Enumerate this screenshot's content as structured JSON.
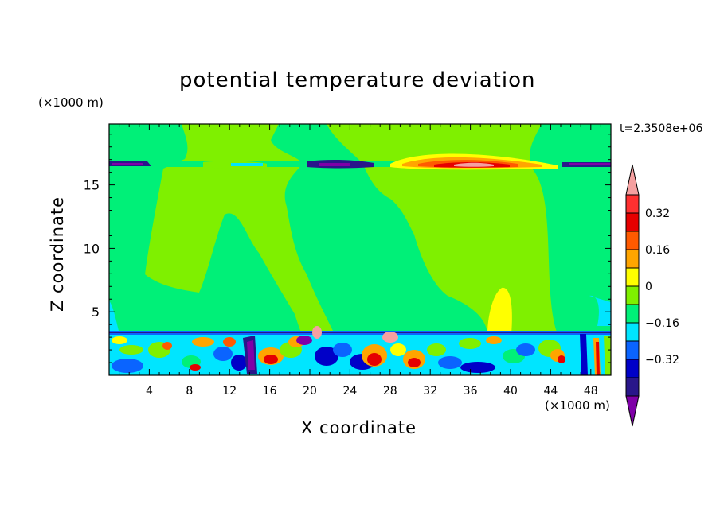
{
  "chart_data": {
    "type": "heatmap",
    "title": "potential temperature deviation",
    "time_label": "t=2.3508e+06",
    "xlabel": "X coordinate",
    "ylabel": "Z coordinate",
    "x_unit": "(×1000 m)",
    "z_unit": "(×1000 m)",
    "xlim": [
      0,
      50
    ],
    "ylim": [
      0,
      19.8
    ],
    "x_ticks": [
      "4",
      "8",
      "12",
      "16",
      "20",
      "24",
      "28",
      "32",
      "36",
      "40",
      "44",
      "48"
    ],
    "y_ticks": [
      "5",
      "10",
      "15"
    ],
    "colorbar": {
      "levels": [
        -0.4,
        -0.32,
        -0.24,
        -0.16,
        -0.08,
        0,
        0.08,
        0.16,
        0.24,
        0.32,
        0.4
      ],
      "tick_labels": [
        "0.32",
        "0.16",
        "0",
        "−0.16",
        "−0.32"
      ],
      "colors": [
        "#7f00a8",
        "#29168a",
        "#0000c8",
        "#0a64ff",
        "#00e5ff",
        "#00f078",
        "#7ff000",
        "#ffff00",
        "#ffa500",
        "#ff5a00",
        "#e60000",
        "#ff3030",
        "#f5a0a0"
      ]
    }
  }
}
